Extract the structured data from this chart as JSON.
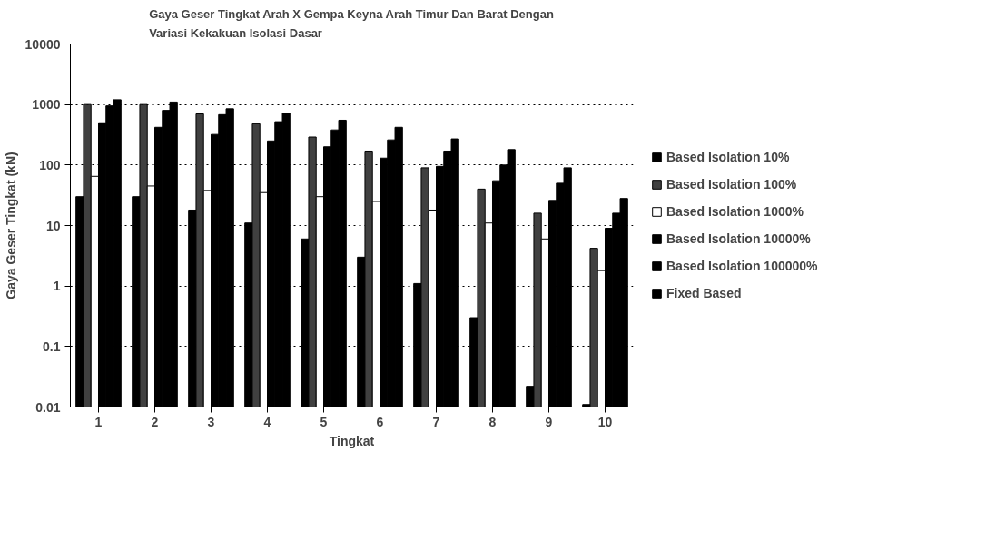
{
  "chart_data": {
    "type": "bar",
    "title": "Gaya Geser Tingkat Arah X Gempa Keyna Arah Timur Dan Barat Dengan\nVariasi Kekakuan Isolasi Dasar",
    "xlabel": "Tingkat",
    "ylabel": "Gaya Geser Tingkat (kN)",
    "log": "y",
    "ylim": [
      0.01,
      10000
    ],
    "yticks": [
      0.01,
      0.1,
      1,
      10,
      100,
      1000,
      10000
    ],
    "grid": "y",
    "legend": "right",
    "categories": [
      "1",
      "2",
      "3",
      "4",
      "5",
      "6",
      "7",
      "8",
      "9",
      "10"
    ],
    "series": [
      {
        "name": "Based Isolation 10%",
        "color": "#000000",
        "values": [
          30,
          30,
          18,
          11,
          6,
          3,
          1.1,
          0.3,
          0.022,
          0.011
        ]
      },
      {
        "name": "Based Isolation 100%",
        "color": "#404040",
        "values": [
          1000,
          1000,
          700,
          480,
          290,
          170,
          90,
          40,
          16,
          4.2
        ]
      },
      {
        "name": "Based Isolation 1000%",
        "color": "#ffffff",
        "values": [
          65,
          45,
          38,
          35,
          30,
          25,
          18,
          11,
          6,
          1.8
        ]
      },
      {
        "name": "Based Isolation 10000%",
        "color": "#000000",
        "values": [
          500,
          420,
          320,
          250,
          200,
          130,
          95,
          55,
          26,
          9
        ]
      },
      {
        "name": "Based Isolation 100000%",
        "color": "#000000",
        "values": [
          950,
          800,
          680,
          520,
          380,
          260,
          170,
          100,
          50,
          16
        ]
      },
      {
        "name": "Fixed Based",
        "color": "#000000",
        "values": [
          1200,
          1100,
          850,
          720,
          550,
          420,
          270,
          180,
          90,
          28
        ]
      }
    ]
  }
}
